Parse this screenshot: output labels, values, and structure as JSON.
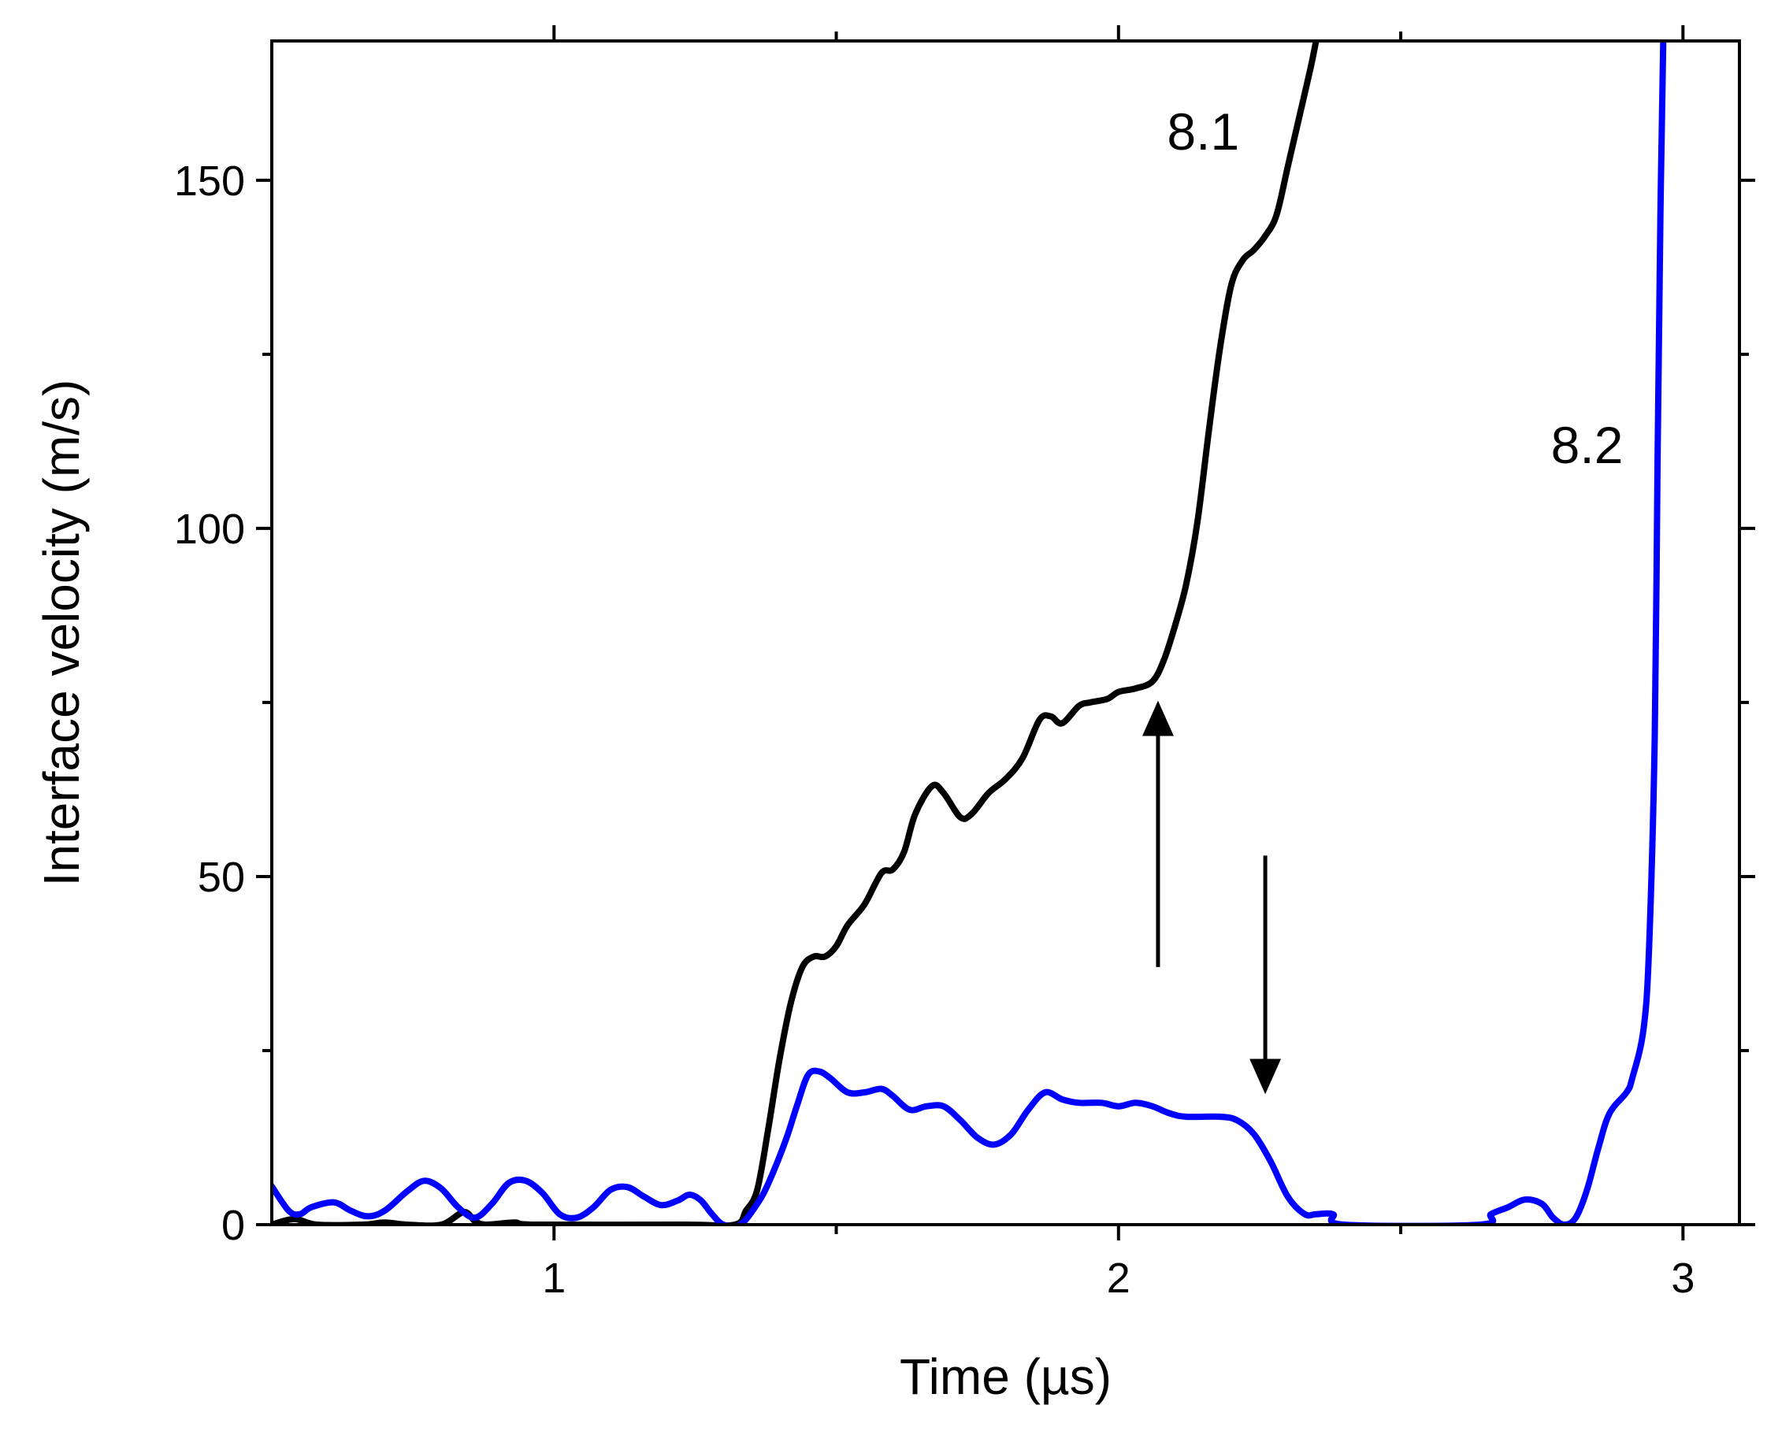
{
  "chart_data": {
    "type": "line",
    "xlabel": "Time (µs)",
    "ylabel": "Interface velocity (m/s)",
    "xlim": [
      0.5,
      3.1
    ],
    "ylim": [
      0,
      170
    ],
    "x_ticks": [
      1,
      2,
      3
    ],
    "x_tick_labels": [
      "1",
      "2",
      "3"
    ],
    "x_minor_ticks": [
      1.5,
      2.5
    ],
    "y_ticks": [
      0,
      50,
      100,
      150
    ],
    "y_tick_labels": [
      "0",
      "50",
      "100",
      "150"
    ],
    "y_minor_ticks": [
      25,
      75,
      125
    ],
    "grid": false,
    "series": [
      {
        "name": "8.1",
        "color": "#000000",
        "points": [
          [
            0.5,
            0.0
          ],
          [
            0.54,
            0.8
          ],
          [
            0.58,
            0.0
          ],
          [
            0.66,
            0.0
          ],
          [
            0.7,
            0.3
          ],
          [
            0.74,
            0.0
          ],
          [
            0.8,
            0.0
          ],
          [
            0.84,
            1.8
          ],
          [
            0.86,
            0.5
          ],
          [
            0.88,
            0.0
          ],
          [
            0.93,
            0.3
          ],
          [
            0.97,
            0.0
          ],
          [
            1.23,
            0.0
          ],
          [
            1.32,
            0.0
          ],
          [
            1.34,
            2.0
          ],
          [
            1.36,
            5.0
          ],
          [
            1.38,
            14.0
          ],
          [
            1.4,
            24.0
          ],
          [
            1.42,
            32.0
          ],
          [
            1.44,
            37.0
          ],
          [
            1.46,
            38.5
          ],
          [
            1.48,
            38.5
          ],
          [
            1.5,
            40.0
          ],
          [
            1.52,
            43.0
          ],
          [
            1.55,
            46.0
          ],
          [
            1.58,
            50.5
          ],
          [
            1.6,
            51.0
          ],
          [
            1.62,
            53.5
          ],
          [
            1.64,
            59.0
          ],
          [
            1.67,
            63.0
          ],
          [
            1.69,
            62.0
          ],
          [
            1.72,
            58.5
          ],
          [
            1.74,
            59.0
          ],
          [
            1.77,
            62.0
          ],
          [
            1.8,
            64.0
          ],
          [
            1.83,
            67.0
          ],
          [
            1.86,
            72.5
          ],
          [
            1.88,
            73.0
          ],
          [
            1.9,
            72.0
          ],
          [
            1.93,
            74.5
          ],
          [
            1.95,
            75.0
          ],
          [
            1.98,
            75.5
          ],
          [
            2.0,
            76.5
          ],
          [
            2.03,
            77.0
          ],
          [
            2.06,
            78.0
          ],
          [
            2.08,
            81.0
          ],
          [
            2.1,
            86.0
          ],
          [
            2.12,
            92.0
          ],
          [
            2.14,
            101.0
          ],
          [
            2.16,
            114.0
          ],
          [
            2.18,
            126.0
          ],
          [
            2.2,
            135.0
          ],
          [
            2.22,
            138.5
          ],
          [
            2.24,
            140.0
          ],
          [
            2.26,
            142.0
          ],
          [
            2.28,
            145.0
          ],
          [
            2.3,
            152.0
          ],
          [
            2.32,
            159.0
          ],
          [
            2.34,
            166.0
          ],
          [
            2.35,
            170.0
          ]
        ]
      },
      {
        "name": "8.2",
        "color": "#0000ff",
        "points": [
          [
            0.5,
            5.5
          ],
          [
            0.53,
            2.0
          ],
          [
            0.55,
            1.5
          ],
          [
            0.57,
            2.5
          ],
          [
            0.61,
            3.2
          ],
          [
            0.64,
            2.0
          ],
          [
            0.67,
            1.2
          ],
          [
            0.7,
            2.0
          ],
          [
            0.74,
            4.8
          ],
          [
            0.77,
            6.3
          ],
          [
            0.8,
            5.2
          ],
          [
            0.83,
            2.5
          ],
          [
            0.86,
            1.0
          ],
          [
            0.89,
            3.0
          ],
          [
            0.92,
            6.0
          ],
          [
            0.95,
            6.3
          ],
          [
            0.98,
            4.5
          ],
          [
            1.01,
            1.5
          ],
          [
            1.04,
            1.0
          ],
          [
            1.07,
            2.5
          ],
          [
            1.1,
            5.0
          ],
          [
            1.13,
            5.4
          ],
          [
            1.16,
            4.0
          ],
          [
            1.19,
            2.8
          ],
          [
            1.22,
            3.5
          ],
          [
            1.24,
            4.3
          ],
          [
            1.26,
            3.5
          ],
          [
            1.28,
            1.5
          ],
          [
            1.3,
            0.0
          ],
          [
            1.33,
            0.0
          ],
          [
            1.36,
            3.0
          ],
          [
            1.38,
            6.0
          ],
          [
            1.41,
            12.0
          ],
          [
            1.43,
            17.0
          ],
          [
            1.45,
            21.5
          ],
          [
            1.47,
            22.0
          ],
          [
            1.49,
            21.0
          ],
          [
            1.52,
            19.0
          ],
          [
            1.55,
            19.0
          ],
          [
            1.58,
            19.5
          ],
          [
            1.6,
            18.5
          ],
          [
            1.63,
            16.5
          ],
          [
            1.66,
            17.0
          ],
          [
            1.69,
            17.0
          ],
          [
            1.72,
            15.0
          ],
          [
            1.75,
            12.5
          ],
          [
            1.78,
            11.5
          ],
          [
            1.81,
            13.0
          ],
          [
            1.84,
            16.5
          ],
          [
            1.87,
            19.0
          ],
          [
            1.9,
            18.0
          ],
          [
            1.93,
            17.5
          ],
          [
            1.97,
            17.5
          ],
          [
            2.0,
            17.0
          ],
          [
            2.03,
            17.5
          ],
          [
            2.06,
            17.0
          ],
          [
            2.09,
            16.0
          ],
          [
            2.12,
            15.5
          ],
          [
            2.18,
            15.5
          ],
          [
            2.21,
            15.0
          ],
          [
            2.24,
            13.0
          ],
          [
            2.27,
            9.0
          ],
          [
            2.3,
            4.0
          ],
          [
            2.33,
            1.5
          ],
          [
            2.35,
            1.5
          ],
          [
            2.38,
            1.5
          ],
          [
            2.4,
            0.0
          ],
          [
            2.64,
            0.0
          ],
          [
            2.66,
            1.5
          ],
          [
            2.69,
            2.5
          ],
          [
            2.72,
            3.6
          ],
          [
            2.75,
            3.0
          ],
          [
            2.77,
            1.0
          ],
          [
            2.79,
            0.0
          ],
          [
            2.81,
            1.0
          ],
          [
            2.83,
            5.0
          ],
          [
            2.85,
            11.0
          ],
          [
            2.87,
            16.0
          ],
          [
            2.9,
            19.0
          ],
          [
            2.91,
            21.0
          ],
          [
            2.93,
            28.0
          ],
          [
            2.94,
            40.0
          ],
          [
            2.95,
            70.0
          ],
          [
            2.955,
            110.0
          ],
          [
            2.96,
            145.0
          ],
          [
            2.965,
            170.0
          ]
        ]
      }
    ],
    "annotations": [
      {
        "text": "8.1",
        "x": 2.15,
        "y": 157
      },
      {
        "text": "8.2",
        "x": 2.83,
        "y": 112
      }
    ],
    "arrows": [
      {
        "x": 2.07,
        "y_from": 37,
        "y_to": 73,
        "direction": "up"
      },
      {
        "x": 2.26,
        "y_from": 53,
        "y_to": 21,
        "direction": "down"
      }
    ]
  }
}
